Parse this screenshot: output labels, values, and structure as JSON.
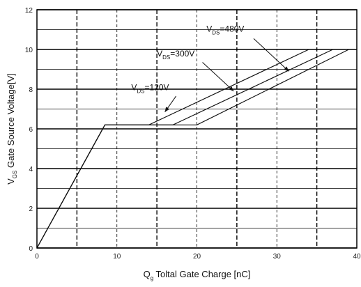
{
  "chart_data": {
    "type": "line",
    "xlabel": {
      "main": "Q",
      "sub": "g",
      "rest": " Toltal Gate Charge [nC]"
    },
    "ylabel": {
      "main": "V",
      "sub": "GS",
      "rest": " Gate Source Voltage[V]"
    },
    "xlim": [
      0,
      40
    ],
    "ylim": [
      0,
      12
    ],
    "x_ticks": [
      "0",
      "10",
      "20",
      "30",
      "40"
    ],
    "y_ticks": [
      "0",
      "2",
      "4",
      "6",
      "8",
      "10",
      "12"
    ],
    "grid": true,
    "series": [
      {
        "name": "VDS=120V",
        "points": [
          [
            0,
            0
          ],
          [
            8.5,
            6.2
          ],
          [
            14,
            6.2
          ],
          [
            34,
            10
          ]
        ]
      },
      {
        "name": "VDS=300V",
        "points": [
          [
            0,
            0
          ],
          [
            8.5,
            6.2
          ],
          [
            17,
            6.2
          ],
          [
            37,
            10
          ]
        ]
      },
      {
        "name": "VDS=480V",
        "points": [
          [
            0,
            0
          ],
          [
            8.5,
            6.2
          ],
          [
            20,
            6.2
          ],
          [
            39,
            10
          ]
        ]
      }
    ],
    "annotations": [
      {
        "main": "V",
        "sub": "DS",
        "rest": "=120V"
      },
      {
        "main": "V",
        "sub": "DS",
        "rest": "=300V"
      },
      {
        "main": "V",
        "sub": "DS",
        "rest": "=480V"
      }
    ]
  }
}
